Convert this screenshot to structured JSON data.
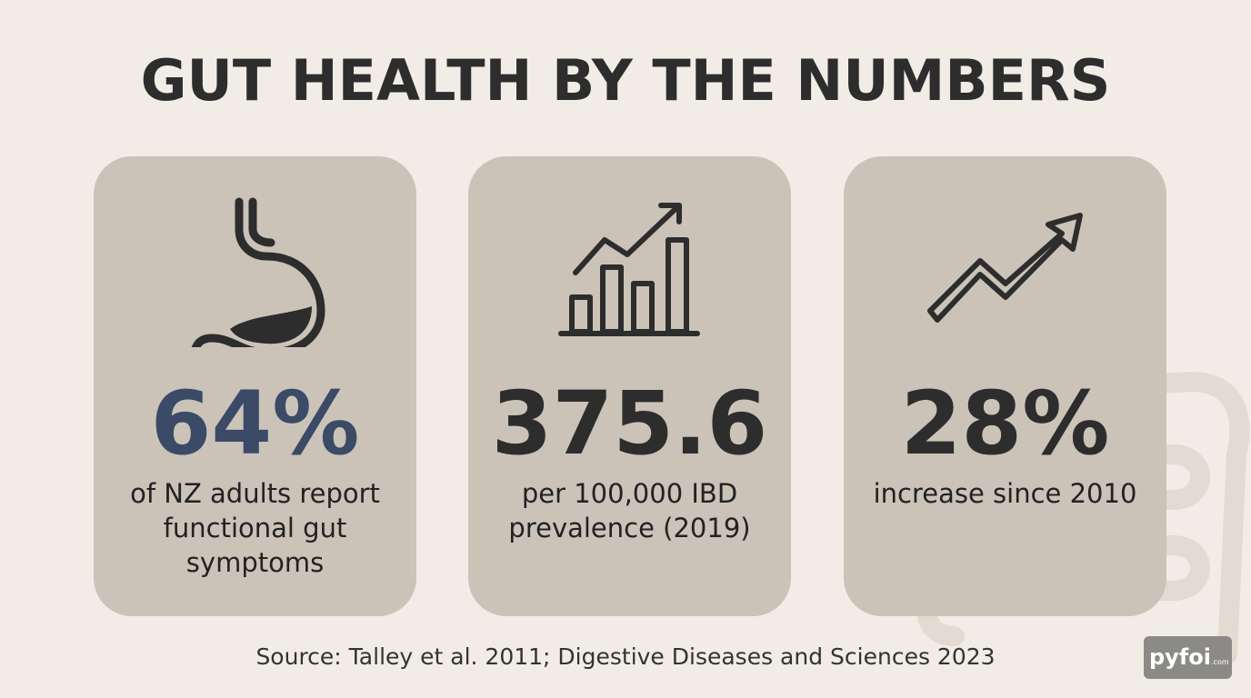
{
  "header": {
    "title": "GUT HEALTH BY THE NUMBERS"
  },
  "cards": [
    {
      "value": "64%",
      "description": "of NZ adults report functional gut symptoms"
    },
    {
      "value": "375.6",
      "description": "per 100,000 IBD prevalence (2019)"
    },
    {
      "value": "28%",
      "description": "increase since 2010"
    }
  ],
  "footer": {
    "source": "Source: Talley et al. 2011; Digestive Diseases and Sciences 2023"
  },
  "logo": {
    "name": "pyfoi",
    "suffix": ".com"
  }
}
